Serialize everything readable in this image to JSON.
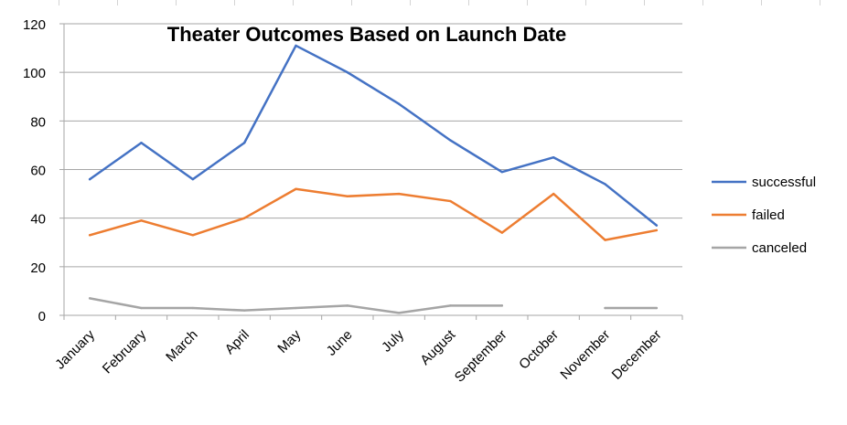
{
  "chart_data": {
    "type": "line",
    "title": "Theater Outcomes Based on Launch Date",
    "xlabel": "",
    "ylabel": "",
    "categories": [
      "January",
      "February",
      "March",
      "April",
      "May",
      "June",
      "July",
      "August",
      "September",
      "October",
      "November",
      "December"
    ],
    "ylim": [
      0,
      120
    ],
    "yticks": [
      0,
      20,
      40,
      60,
      80,
      100,
      120
    ],
    "grid": true,
    "legend_position": "right",
    "series": [
      {
        "name": "successful",
        "color": "#4472C4",
        "values": [
          56,
          71,
          56,
          71,
          111,
          100,
          87,
          72,
          59,
          65,
          54,
          37
        ]
      },
      {
        "name": "failed",
        "color": "#ED7D31",
        "values": [
          33,
          39,
          33,
          40,
          52,
          49,
          50,
          47,
          34,
          50,
          31,
          35
        ]
      },
      {
        "name": "canceled",
        "color": "#A5A5A5",
        "values": [
          7,
          3,
          3,
          2,
          3,
          4,
          1,
          4,
          4,
          null,
          3,
          3
        ]
      }
    ]
  }
}
